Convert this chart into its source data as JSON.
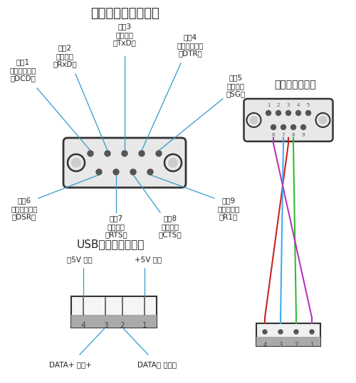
{
  "title_serial": "串口接口横切解析图",
  "title_internal": "内部连接示意图",
  "title_usb": "USB接口横切解析图",
  "bg_color": "#ffffff",
  "line_color": "#3399cc",
  "wire_colors": [
    "#cc2222",
    "#44aaee",
    "#33bb33",
    "#bb33bb"
  ]
}
